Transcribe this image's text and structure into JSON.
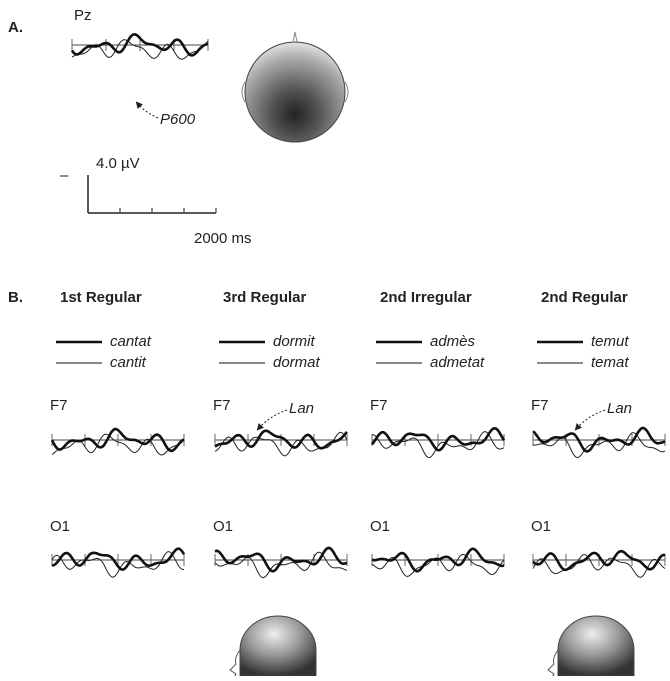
{
  "panel_a": {
    "label": "A.",
    "electrode": "Pz",
    "annotation": "P600",
    "amplitude_scale": "4.0 µV",
    "time_scale": "2000 ms"
  },
  "panel_b": {
    "label": "B.",
    "columns": [
      {
        "title": "1st Regular",
        "legend": [
          "cantat",
          "cantit"
        ],
        "electrodes": [
          "F7",
          "O1"
        ]
      },
      {
        "title": "3rd Regular",
        "legend": [
          "dormit",
          "dormat"
        ],
        "electrodes": [
          "F7",
          "O1"
        ],
        "annotation": "Lan"
      },
      {
        "title": "2nd Irregular",
        "legend": [
          "admès",
          "admetat"
        ],
        "electrodes": [
          "F7",
          "O1"
        ]
      },
      {
        "title": "2nd Regular",
        "legend": [
          "temut",
          "temat"
        ],
        "electrodes": [
          "F7",
          "O1"
        ],
        "annotation": "Lan"
      }
    ]
  }
}
